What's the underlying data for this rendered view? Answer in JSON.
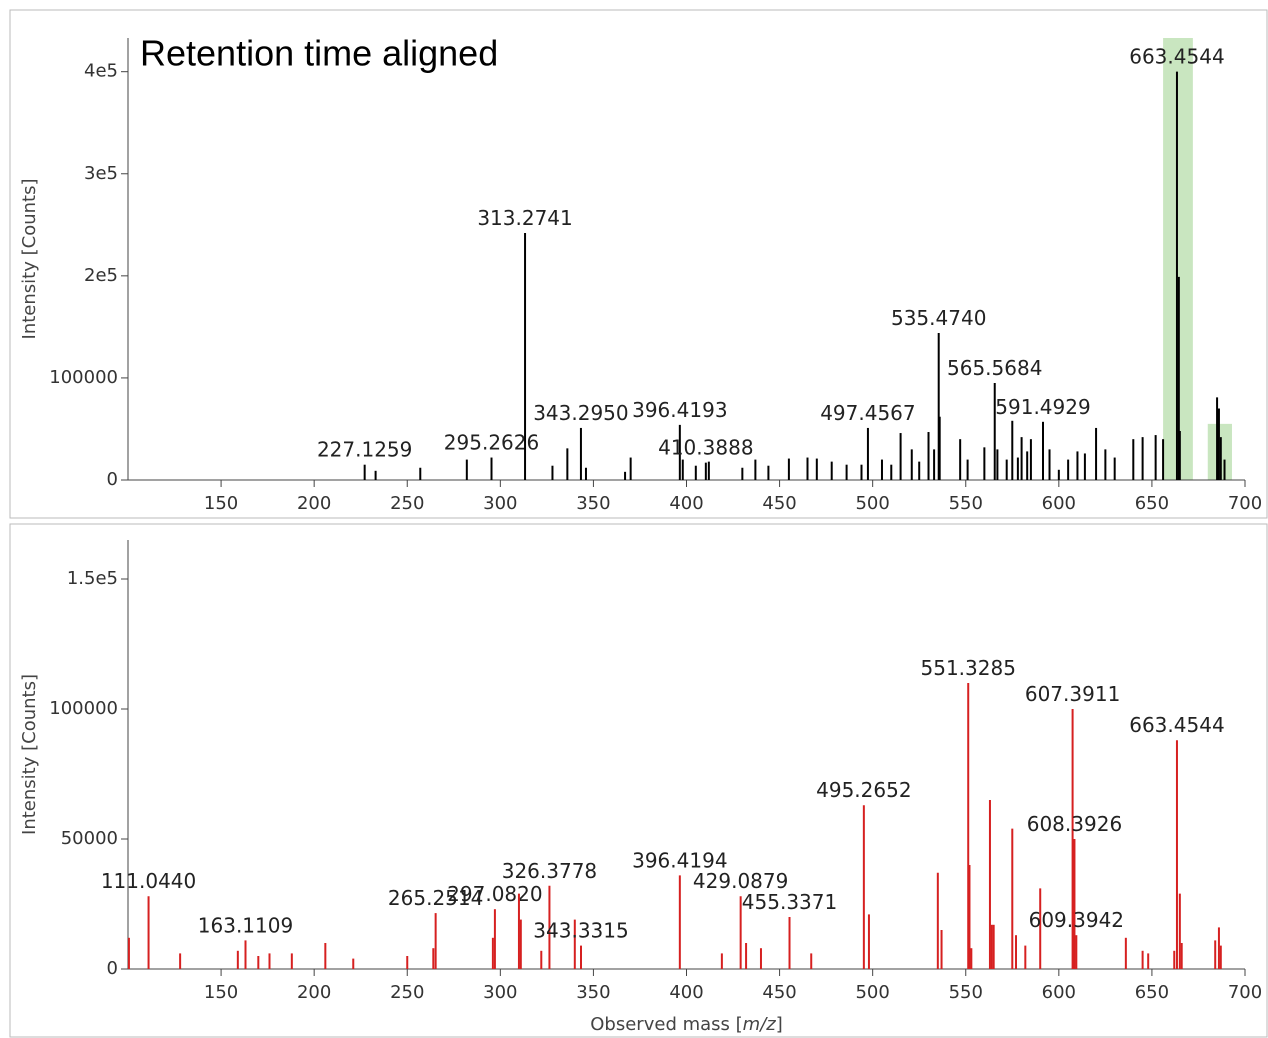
{
  "chart_data": [
    {
      "type": "bar",
      "title": "Retention time aligned",
      "ylabel": "Intensity [Counts]",
      "color": "#000000",
      "xlim": [
        100,
        700
      ],
      "xticks": [
        150,
        200,
        250,
        300,
        350,
        400,
        450,
        500,
        550,
        600,
        650,
        700
      ],
      "ylim": [
        0,
        433000
      ],
      "yticks": [
        0,
        100000,
        {
          "value": 200000,
          "label": "2e5"
        },
        {
          "value": 300000,
          "label": "3e5"
        },
        {
          "value": 400000,
          "label": "4e5"
        }
      ],
      "highlights": [
        {
          "xlim": [
            656,
            672
          ],
          "ylim": [
            0,
            433000
          ],
          "color": "#c9e6c0"
        },
        {
          "xlim": [
            680,
            693
          ],
          "ylim": [
            0,
            55000
          ],
          "color": "#c9e6c0"
        }
      ],
      "x": [
        227.1259,
        233,
        257,
        282,
        295.2626,
        313.2741,
        328,
        336,
        343.295,
        346,
        367,
        370,
        396.4193,
        398,
        405,
        410.3888,
        412,
        430,
        437,
        444,
        455,
        465,
        470,
        478,
        486,
        494,
        497.4567,
        505,
        510,
        515,
        521,
        525,
        530,
        533,
        535.474,
        536,
        547,
        551,
        560,
        565.5684,
        567,
        572,
        575,
        578,
        580,
        583,
        585,
        591.4929,
        595,
        600,
        605,
        610,
        614,
        620,
        625,
        630,
        640,
        645,
        652,
        656,
        663.4544,
        664.46,
        665,
        685,
        686,
        687,
        689
      ],
      "values": [
        15000,
        9000,
        12000,
        20000,
        22000,
        242000,
        14000,
        31000,
        51000,
        12000,
        8000,
        22000,
        54000,
        20000,
        14000,
        17000,
        18000,
        12000,
        20000,
        14000,
        21000,
        22000,
        21000,
        18000,
        15000,
        15000,
        51000,
        20000,
        15000,
        46000,
        30000,
        18000,
        47000,
        30000,
        144000,
        62000,
        40000,
        20000,
        32000,
        95000,
        30000,
        20000,
        58000,
        22000,
        42000,
        28000,
        40000,
        57000,
        30000,
        10000,
        20000,
        28000,
        26000,
        51000,
        30000,
        22000,
        40000,
        42000,
        44000,
        40000,
        400000,
        199000,
        48000,
        81000,
        70000,
        42000,
        20000
      ],
      "labels": [
        "227.1259",
        null,
        null,
        null,
        "295.2626",
        "313.2741",
        null,
        null,
        "343.2950",
        null,
        null,
        null,
        "396.4193",
        null,
        null,
        "410.3888",
        null,
        null,
        null,
        null,
        null,
        null,
        null,
        null,
        null,
        null,
        "497.4567",
        null,
        null,
        null,
        null,
        null,
        null,
        null,
        "535.4740",
        null,
        null,
        null,
        null,
        "565.5684",
        null,
        null,
        null,
        null,
        null,
        null,
        null,
        "591.4929",
        null,
        null,
        null,
        null,
        null,
        null,
        null,
        null,
        null,
        null,
        null,
        null,
        "663.4544",
        null,
        null,
        null,
        null,
        null,
        null
      ]
    },
    {
      "type": "bar",
      "ylabel": "Intensity [Counts]",
      "color": "#d62020",
      "xlabel": {
        "text": "Observed mass [",
        "italic": "m/z",
        "end": "]"
      },
      "xlim": [
        100,
        700
      ],
      "xticks": [
        150,
        200,
        250,
        300,
        350,
        400,
        450,
        500,
        550,
        600,
        650,
        700
      ],
      "ylim": [
        0,
        165000
      ],
      "yticks": [
        0,
        50000,
        100000,
        {
          "value": 150000,
          "label": "1.5e5"
        }
      ],
      "x": [
        100.5,
        111.044,
        128,
        159,
        163.1109,
        170,
        176,
        188,
        206,
        221,
        250,
        264,
        265.2514,
        296,
        297.082,
        310,
        311,
        322,
        326.3778,
        340,
        343.3315,
        396.4194,
        419,
        429.0879,
        432,
        440,
        455.3371,
        467,
        495.2652,
        498,
        535,
        537,
        551.3285,
        552,
        553,
        563,
        564,
        565,
        575,
        577,
        582,
        590,
        607.3911,
        608.3926,
        609.3942,
        636,
        645,
        648,
        662,
        663.4544,
        665,
        666,
        684,
        686,
        687
      ],
      "values": [
        12000,
        28000,
        6000,
        7000,
        11000,
        5000,
        6000,
        6000,
        10000,
        4000,
        5000,
        8000,
        21500,
        12000,
        23000,
        29000,
        19000,
        7000,
        32000,
        19000,
        9000,
        36000,
        6000,
        28000,
        10000,
        8000,
        20000,
        6000,
        63000,
        21000,
        37000,
        15000,
        110000,
        40000,
        8000,
        65000,
        17000,
        17000,
        54000,
        13000,
        9000,
        31000,
        100000,
        50000,
        13000,
        12000,
        7000,
        6000,
        7000,
        88000,
        29000,
        10000,
        11000,
        16000,
        9000
      ],
      "labels": [
        null,
        "111.0440",
        null,
        null,
        "163.1109",
        null,
        null,
        null,
        null,
        null,
        null,
        null,
        "265.2514",
        null,
        "297.0820",
        null,
        null,
        null,
        "326.3778",
        null,
        "343.3315",
        "396.4194",
        null,
        "429.0879",
        null,
        null,
        "455.3371",
        null,
        "495.2652",
        null,
        null,
        null,
        "551.3285",
        null,
        null,
        null,
        null,
        null,
        null,
        null,
        null,
        null,
        "607.3911",
        "608.3926",
        "609.3942",
        null,
        null,
        null,
        null,
        "663.4544",
        null,
        null,
        null,
        null,
        null
      ]
    }
  ]
}
